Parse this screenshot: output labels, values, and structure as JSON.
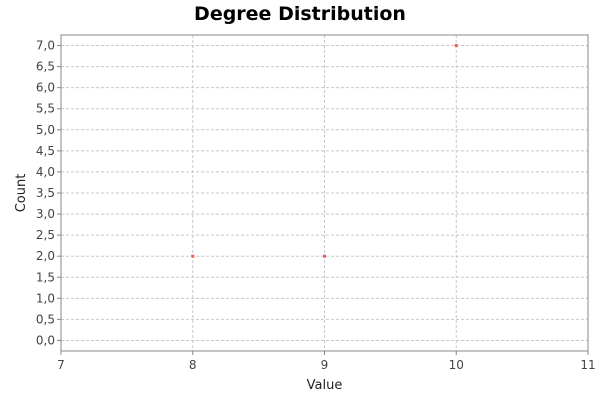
{
  "chart_data": {
    "type": "scatter",
    "title": "Degree Distribution",
    "xlabel": "Value",
    "ylabel": "Count",
    "xlim": [
      7,
      11
    ],
    "ylim": [
      -0.25,
      7.25
    ],
    "x_ticks": [
      7,
      8,
      9,
      10,
      11
    ],
    "x_tick_labels": [
      "7",
      "8",
      "9",
      "10",
      "11"
    ],
    "y_ticks": [
      0,
      0.5,
      1,
      1.5,
      2,
      2.5,
      3,
      3.5,
      4,
      4.5,
      5,
      5.5,
      6,
      6.5,
      7
    ],
    "y_tick_labels": [
      "0,0",
      "0,5",
      "1,0",
      "1,5",
      "2,0",
      "2,5",
      "3,0",
      "3,5",
      "4,0",
      "4,5",
      "5,0",
      "5,5",
      "6,0",
      "6,5",
      "7,0"
    ],
    "grid": true,
    "legend": "none",
    "series": [
      {
        "color": "#ff5555",
        "points": [
          {
            "x": 8,
            "y": 2
          },
          {
            "x": 9,
            "y": 2
          },
          {
            "x": 10,
            "y": 7
          }
        ]
      }
    ]
  },
  "colors": {
    "grid": "#c8c8c8",
    "plot_border": "#888888",
    "plot_background": "#ffffff"
  }
}
